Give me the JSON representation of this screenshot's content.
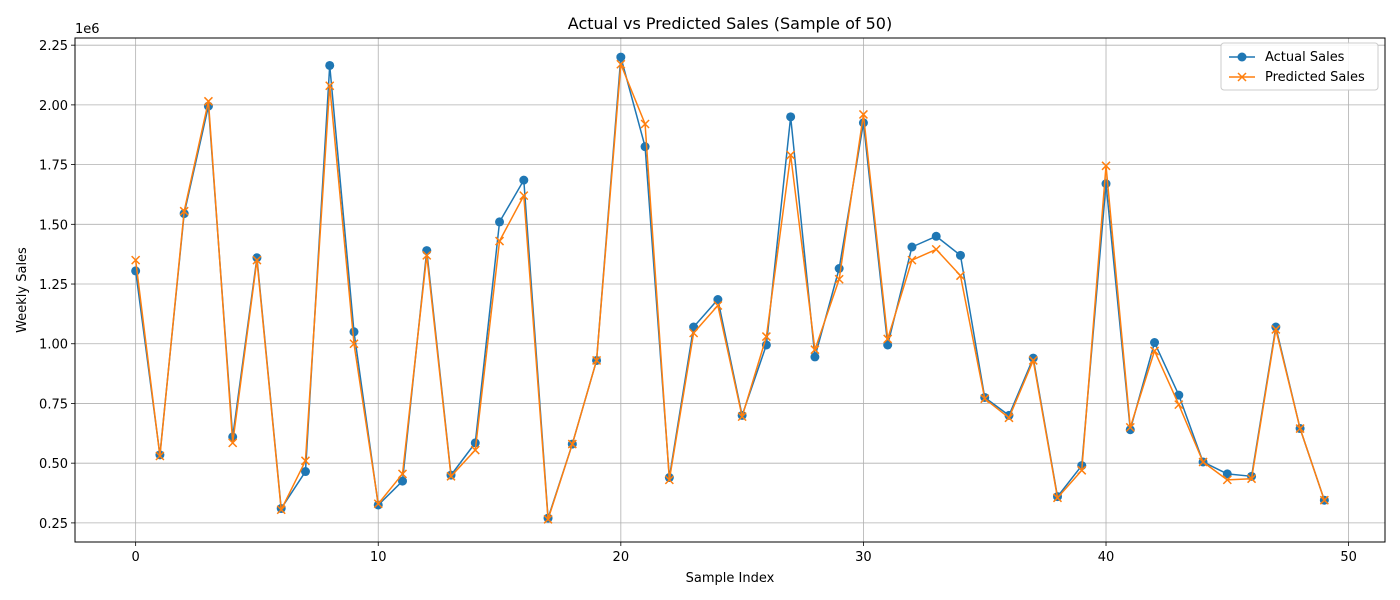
{
  "chart_data": {
    "type": "line",
    "title": "Actual vs Predicted Sales (Sample of 50)",
    "xlabel": "Sample Index",
    "ylabel": "Weekly Sales",
    "y_offset_label": "1e6",
    "xlim": [
      -2.5,
      51.5
    ],
    "ylim": [
      0.17,
      2.28
    ],
    "y_scale_factor": 1000000,
    "xticks": [
      0,
      10,
      20,
      30,
      40,
      50
    ],
    "xtick_labels": [
      "0",
      "10",
      "20",
      "30",
      "40",
      "50"
    ],
    "yticks": [
      0.25,
      0.5,
      0.75,
      1.0,
      1.25,
      1.5,
      1.75,
      2.0,
      2.25
    ],
    "ytick_labels": [
      "0.25",
      "0.50",
      "0.75",
      "1.00",
      "1.25",
      "1.50",
      "1.75",
      "2.00",
      "2.25"
    ],
    "grid": true,
    "legend_position": "top-right",
    "x": [
      0,
      1,
      2,
      3,
      4,
      5,
      6,
      7,
      8,
      9,
      10,
      11,
      12,
      13,
      14,
      15,
      16,
      17,
      18,
      19,
      20,
      21,
      22,
      23,
      24,
      25,
      26,
      27,
      28,
      29,
      30,
      31,
      32,
      33,
      34,
      35,
      36,
      37,
      38,
      39,
      40,
      41,
      42,
      43,
      44,
      45,
      46,
      47,
      48,
      49
    ],
    "series": [
      {
        "name": "Actual Sales",
        "color": "#1f77b4",
        "marker": "circle",
        "values": [
          1.305,
          0.535,
          1.545,
          1.995,
          0.61,
          1.36,
          0.31,
          0.465,
          2.165,
          1.05,
          0.325,
          0.425,
          1.39,
          0.45,
          0.585,
          1.51,
          1.685,
          0.27,
          0.58,
          0.93,
          2.2,
          1.825,
          0.44,
          1.07,
          1.185,
          0.7,
          0.995,
          1.95,
          0.945,
          1.315,
          1.925,
          0.995,
          1.405,
          1.45,
          1.37,
          0.775,
          0.7,
          0.94,
          0.36,
          0.49,
          1.67,
          0.64,
          1.005,
          0.785,
          0.505,
          0.455,
          0.445,
          1.07,
          0.645,
          0.345
        ]
      },
      {
        "name": "Predicted Sales",
        "color": "#ff7f0e",
        "marker": "x",
        "values": [
          1.35,
          0.53,
          1.555,
          2.015,
          0.585,
          1.35,
          0.305,
          0.51,
          2.08,
          1.0,
          0.33,
          0.455,
          1.37,
          0.445,
          0.555,
          1.43,
          1.62,
          0.265,
          0.58,
          0.93,
          2.17,
          1.92,
          0.43,
          1.045,
          1.16,
          0.695,
          1.03,
          1.79,
          0.975,
          1.27,
          1.96,
          1.02,
          1.35,
          1.395,
          1.285,
          0.77,
          0.69,
          0.93,
          0.355,
          0.47,
          1.745,
          0.65,
          0.97,
          0.745,
          0.505,
          0.43,
          0.435,
          1.06,
          0.645,
          0.345
        ]
      }
    ]
  }
}
